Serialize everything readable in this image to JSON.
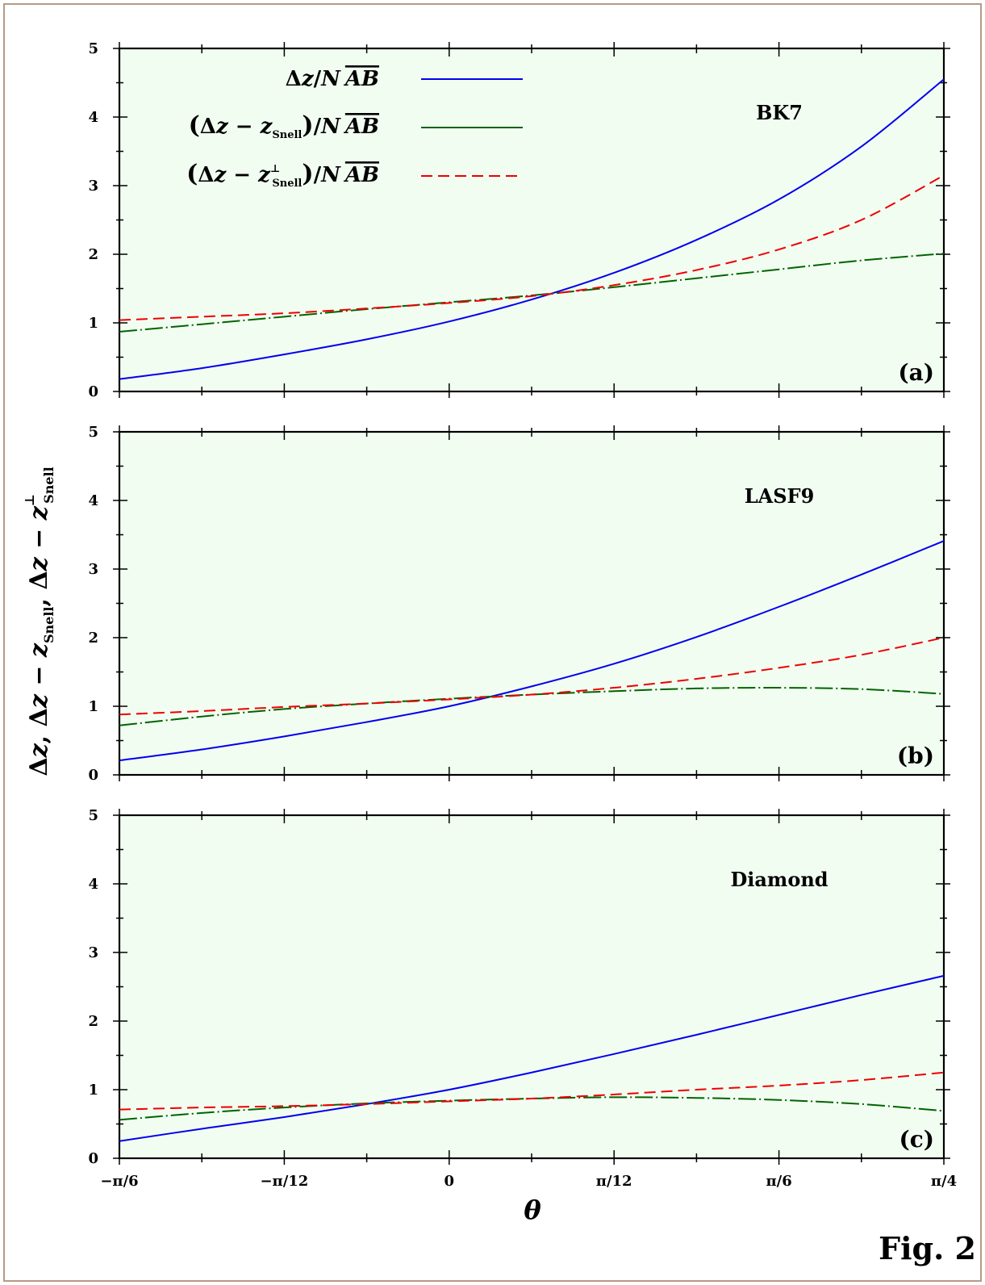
{
  "figure_label": "Fig. 2",
  "colors": {
    "panel_background": "#f2fdf2",
    "blue": "#0000ee",
    "green": "#006400",
    "red": "#ee0000",
    "frame": "#b79a86"
  },
  "legend": [
    {
      "id": "dz",
      "label": "Δz / N AB",
      "color": "#0000ee",
      "style": "solid"
    },
    {
      "id": "dzs",
      "label": "(Δz − z_Snell) / N AB",
      "color": "#006400",
      "style": "dash-dot"
    },
    {
      "id": "dzp",
      "label": "(Δz − z⊥_Snell) / N AB",
      "color": "#ee0000",
      "style": "dashed"
    }
  ],
  "axes": {
    "xlabel": "θ",
    "ylabel": "Δz,  Δz − z_Snell,  Δz − z⊥_Snell",
    "x_ticks": [
      "−π/6",
      "−π/12",
      "0",
      "π/12",
      "π/6",
      "π/4"
    ],
    "y_ticks": [
      "0",
      "1",
      "2",
      "3",
      "4",
      "5"
    ]
  },
  "chart_data": [
    {
      "type": "line",
      "material": "BK7",
      "panel_label": "(a)",
      "x_unit": "rad",
      "xlim": [
        -0.5236,
        0.7854
      ],
      "ylim": [
        0,
        5
      ],
      "x": [
        -0.5236,
        -0.3927,
        -0.2618,
        -0.1309,
        0.0,
        0.1309,
        0.2618,
        0.3927,
        0.5236,
        0.6545,
        0.7854
      ],
      "series": [
        {
          "name": "Δz / N AB",
          "color": "#0000ee",
          "style": "solid",
          "values": [
            0.18,
            0.34,
            0.54,
            0.76,
            1.02,
            1.34,
            1.73,
            2.21,
            2.8,
            3.57,
            4.55
          ]
        },
        {
          "name": "(Δz − z_Snell) / N AB",
          "color": "#006400",
          "style": "dash-dot",
          "values": [
            0.87,
            0.98,
            1.09,
            1.2,
            1.3,
            1.4,
            1.52,
            1.65,
            1.78,
            1.91,
            2.01
          ]
        },
        {
          "name": "(Δz − z⊥_Snell) / N AB",
          "color": "#ee0000",
          "style": "dashed",
          "values": [
            1.04,
            1.09,
            1.14,
            1.21,
            1.29,
            1.39,
            1.55,
            1.77,
            2.07,
            2.5,
            3.15
          ]
        }
      ]
    },
    {
      "type": "line",
      "material": "LASF9",
      "panel_label": "(b)",
      "x_unit": "rad",
      "xlim": [
        -0.5236,
        0.7854
      ],
      "ylim": [
        0,
        5
      ],
      "x": [
        -0.5236,
        -0.3927,
        -0.2618,
        -0.1309,
        0.0,
        0.1309,
        0.2618,
        0.3927,
        0.5236,
        0.6545,
        0.7854
      ],
      "series": [
        {
          "name": "Δz / N AB",
          "color": "#0000ee",
          "style": "solid",
          "values": [
            0.21,
            0.37,
            0.56,
            0.77,
            1.0,
            1.29,
            1.62,
            2.01,
            2.45,
            2.92,
            3.41
          ]
        },
        {
          "name": "(Δz − z_Snell) / N AB",
          "color": "#006400",
          "style": "dash-dot",
          "values": [
            0.72,
            0.85,
            0.96,
            1.04,
            1.11,
            1.17,
            1.22,
            1.26,
            1.27,
            1.25,
            1.18
          ]
        },
        {
          "name": "(Δz − z⊥_Snell) / N AB",
          "color": "#ee0000",
          "style": "dashed",
          "values": [
            0.88,
            0.93,
            0.99,
            1.04,
            1.1,
            1.17,
            1.27,
            1.4,
            1.56,
            1.75,
            2.0
          ]
        }
      ]
    },
    {
      "type": "line",
      "material": "Diamond",
      "panel_label": "(c)",
      "x_unit": "rad",
      "xlim": [
        -0.5236,
        0.7854
      ],
      "ylim": [
        0,
        5
      ],
      "x": [
        -0.5236,
        -0.3927,
        -0.2618,
        -0.1309,
        0.0,
        0.1309,
        0.2618,
        0.3927,
        0.5236,
        0.6545,
        0.7854
      ],
      "series": [
        {
          "name": "Δz / N AB",
          "color": "#0000ee",
          "style": "solid",
          "values": [
            0.25,
            0.43,
            0.6,
            0.79,
            1.0,
            1.25,
            1.52,
            1.8,
            2.09,
            2.38,
            2.66
          ]
        },
        {
          "name": "(Δz − z_Snell) / N AB",
          "color": "#006400",
          "style": "dash-dot",
          "values": [
            0.56,
            0.66,
            0.74,
            0.8,
            0.84,
            0.87,
            0.89,
            0.88,
            0.85,
            0.79,
            0.69
          ]
        },
        {
          "name": "(Δz − z⊥_Snell) / N AB",
          "color": "#ee0000",
          "style": "dashed",
          "values": [
            0.71,
            0.74,
            0.76,
            0.79,
            0.83,
            0.87,
            0.93,
            1.0,
            1.06,
            1.14,
            1.25
          ]
        }
      ]
    }
  ]
}
